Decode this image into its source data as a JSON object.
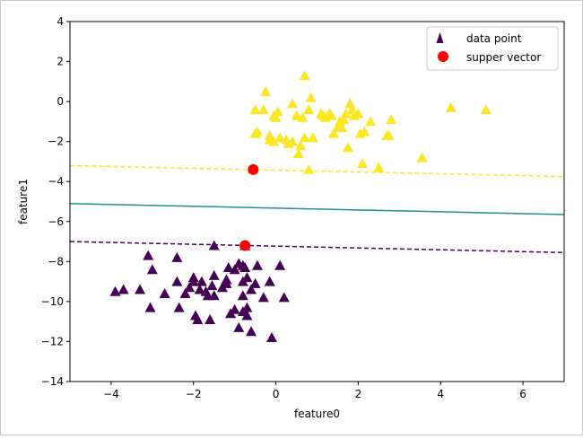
{
  "chart_data": {
    "type": "scatter",
    "title": "",
    "xlabel": "feature0",
    "ylabel": "feature1",
    "xlim": [
      -5,
      7
    ],
    "ylim": [
      -14,
      4
    ],
    "xticks": [
      -4,
      -2,
      0,
      2,
      4,
      6
    ],
    "yticks": [
      -14,
      -12,
      -10,
      -8,
      -6,
      -4,
      -2,
      0,
      2,
      4
    ],
    "xtick_labels": [
      "−4",
      "−2",
      "0",
      "2",
      "4",
      "6"
    ],
    "ytick_labels": [
      "−14",
      "−12",
      "−10",
      "−8",
      "−6",
      "−4",
      "−2",
      "0",
      "2",
      "4"
    ],
    "grid": false,
    "legend_position": "top-right",
    "legend": [
      {
        "label": "data point",
        "marker": "triangle",
        "color": "#440154"
      },
      {
        "label": "supper vector",
        "marker": "circle",
        "color": "#ff0000"
      }
    ],
    "colors": {
      "class0": "#440154",
      "class1": "#fde725",
      "boundary": "#21918c",
      "support": "#ff0000"
    },
    "series": [
      {
        "name": "data point",
        "class": 0,
        "points": [
          [
            -3.9,
            -9.5
          ],
          [
            -3.7,
            -9.4
          ],
          [
            -3.3,
            -9.4
          ],
          [
            -3.1,
            -7.7
          ],
          [
            -3.0,
            -8.4
          ],
          [
            -3.05,
            -10.3
          ],
          [
            -2.7,
            -9.6
          ],
          [
            -2.4,
            -7.8
          ],
          [
            -2.4,
            -9.0
          ],
          [
            -2.35,
            -10.3
          ],
          [
            -2.2,
            -9.6
          ],
          [
            -2.1,
            -9.3
          ],
          [
            -2.0,
            -8.8
          ],
          [
            -2.0,
            -9.0
          ],
          [
            -1.95,
            -10.7
          ],
          [
            -1.9,
            -10.9
          ],
          [
            -1.85,
            -9.4
          ],
          [
            -1.8,
            -9.0
          ],
          [
            -1.7,
            -9.5
          ],
          [
            -1.65,
            -9.7
          ],
          [
            -1.6,
            -10.9
          ],
          [
            -1.55,
            -9.2
          ],
          [
            -1.5,
            -8.7
          ],
          [
            -1.5,
            -9.7
          ],
          [
            -1.5,
            -7.2
          ],
          [
            -1.3,
            -9.3
          ],
          [
            -1.2,
            -9.1
          ],
          [
            -1.2,
            -8.9
          ],
          [
            -1.15,
            -8.3
          ],
          [
            -1.1,
            -10.6
          ],
          [
            -1.0,
            -8.4
          ],
          [
            -1.0,
            -10.4
          ],
          [
            -0.9,
            -8.1
          ],
          [
            -0.9,
            -11.3
          ],
          [
            -0.8,
            -8.2
          ],
          [
            -0.8,
            -10.5
          ],
          [
            -0.8,
            -9.7
          ],
          [
            -0.8,
            -9.0
          ],
          [
            -0.75,
            -8.3
          ],
          [
            -0.7,
            -10.3
          ],
          [
            -0.7,
            -10.7
          ],
          [
            -0.7,
            -8.8
          ],
          [
            -0.6,
            -9.4
          ],
          [
            -0.6,
            -11.5
          ],
          [
            -0.5,
            -9.1
          ],
          [
            -0.45,
            -8.2
          ],
          [
            -0.3,
            -9.8
          ],
          [
            -0.15,
            -9.0
          ],
          [
            -0.1,
            -11.8
          ],
          [
            0.1,
            -8.2
          ],
          [
            0.2,
            -9.8
          ],
          [
            -0.75,
            -7.2
          ]
        ]
      },
      {
        "name": "data point",
        "class": 1,
        "points": [
          [
            -0.5,
            -0.4
          ],
          [
            -0.5,
            -1.6
          ],
          [
            -0.45,
            -1.5
          ],
          [
            -0.3,
            -0.4
          ],
          [
            -0.25,
            0.5
          ],
          [
            -0.15,
            -1.9
          ],
          [
            -0.15,
            -1.7
          ],
          [
            -0.05,
            -0.7
          ],
          [
            -0.05,
            -2.0
          ],
          [
            0.0,
            -0.8
          ],
          [
            0.05,
            -0.5
          ],
          [
            0.1,
            -1.8
          ],
          [
            0.25,
            -1.9
          ],
          [
            0.3,
            -2.1
          ],
          [
            0.4,
            -2.0
          ],
          [
            0.4,
            -0.1
          ],
          [
            0.5,
            -0.7
          ],
          [
            0.55,
            -2.6
          ],
          [
            0.6,
            -2.2
          ],
          [
            0.65,
            -0.8
          ],
          [
            0.7,
            1.3
          ],
          [
            0.7,
            -1.8
          ],
          [
            0.8,
            -0.4
          ],
          [
            0.8,
            -3.4
          ],
          [
            0.85,
            0.2
          ],
          [
            0.9,
            -1.8
          ],
          [
            1.1,
            -0.6
          ],
          [
            1.15,
            -0.7
          ],
          [
            1.2,
            -0.8
          ],
          [
            1.3,
            -0.6
          ],
          [
            1.35,
            -0.7
          ],
          [
            1.4,
            -1.6
          ],
          [
            1.5,
            -1.3
          ],
          [
            1.55,
            -1.0
          ],
          [
            1.6,
            -1.3
          ],
          [
            1.65,
            -0.9
          ],
          [
            1.7,
            -0.6
          ],
          [
            1.75,
            -2.3
          ],
          [
            1.8,
            -0.1
          ],
          [
            1.85,
            -0.4
          ],
          [
            1.9,
            -0.7
          ],
          [
            2.0,
            -0.6
          ],
          [
            2.05,
            -1.6
          ],
          [
            2.1,
            -3.1
          ],
          [
            2.15,
            -1.5
          ],
          [
            2.3,
            -1.0
          ],
          [
            2.5,
            -3.3
          ],
          [
            2.7,
            -1.7
          ],
          [
            2.75,
            -1.7
          ],
          [
            2.8,
            -0.9
          ],
          [
            3.55,
            -2.8
          ],
          [
            4.25,
            -0.3
          ],
          [
            5.1,
            -0.4
          ],
          [
            -0.55,
            -3.4
          ]
        ]
      }
    ],
    "support_vectors": [
      [
        -0.55,
        -3.4
      ],
      [
        -0.75,
        -7.2
      ]
    ],
    "lines": [
      {
        "name": "margin-upper",
        "style": "dashed",
        "color": "#fde725",
        "points": [
          [
            -5,
            -3.2
          ],
          [
            7,
            -3.75
          ]
        ]
      },
      {
        "name": "decision-boundary",
        "style": "solid",
        "color": "#21918c",
        "points": [
          [
            -5,
            -5.1
          ],
          [
            7,
            -5.65
          ]
        ]
      },
      {
        "name": "margin-lower",
        "style": "dashed",
        "color": "#440154",
        "points": [
          [
            -5,
            -7.0
          ],
          [
            7,
            -7.55
          ]
        ]
      }
    ]
  }
}
